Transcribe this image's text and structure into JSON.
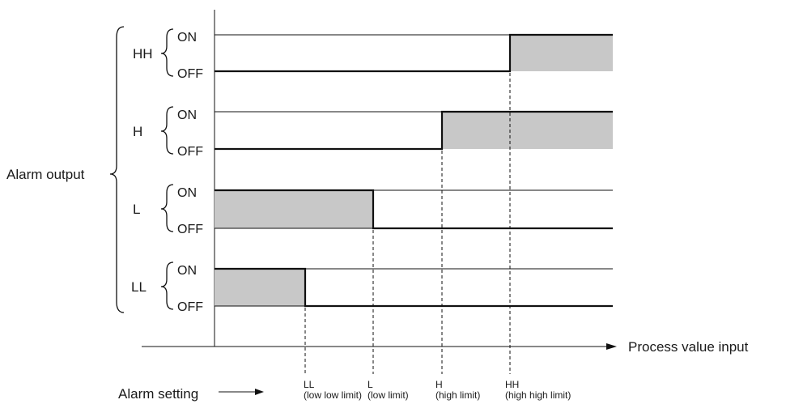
{
  "group_label": "Alarm output",
  "on_label": "ON",
  "off_label": "OFF",
  "x_axis_label": "Process value input",
  "setting_label": "Alarm setting",
  "shade_color": "#c8c8c8",
  "line_color": "#111111",
  "alarms": [
    {
      "name": "HH",
      "on_region": "above HH"
    },
    {
      "name": "H",
      "on_region": "above H"
    },
    {
      "name": "L",
      "on_region": "below L"
    },
    {
      "name": "LL",
      "on_region": "below LL"
    }
  ],
  "setpoints": [
    {
      "code": "LL",
      "desc": "(low low limit)"
    },
    {
      "code": "L",
      "desc": "(low limit)"
    },
    {
      "code": "H",
      "desc": "(high limit)"
    },
    {
      "code": "HH",
      "desc": "(high high limit)"
    }
  ]
}
